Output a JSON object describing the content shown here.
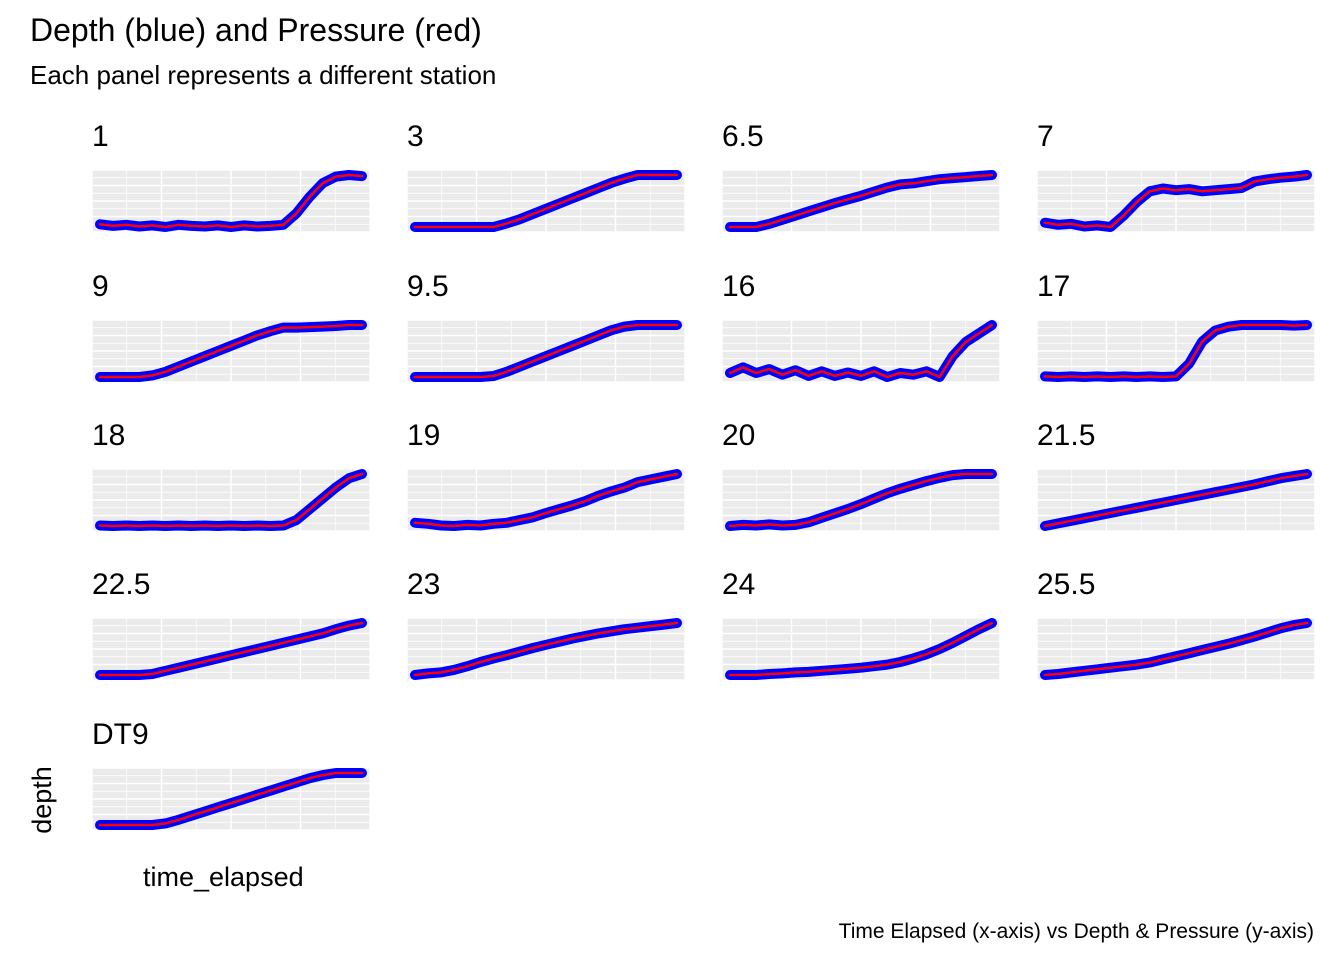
{
  "title": "Depth (blue) and Pressure (red)",
  "subtitle": "Each panel represents a different station",
  "caption": "Time Elapsed (x-axis) vs Depth & Pressure (y-axis)",
  "colors": {
    "depth": "#0000ff",
    "pressure": "#ff0000",
    "panel_background": "#ebebeb",
    "grid": "#ffffff"
  },
  "chart_data": {
    "type": "line",
    "layout": "facet_wrap",
    "facet_columns": 4,
    "xlabel": "time_elapsed",
    "ylabel": "depth",
    "x_ticks_shown": false,
    "y_ticks_shown": false,
    "grid": true,
    "legend": "none",
    "facet_scales": "free",
    "x": [
      0,
      0.05,
      0.1,
      0.15,
      0.2,
      0.25,
      0.3,
      0.35,
      0.4,
      0.45,
      0.5,
      0.55,
      0.6,
      0.65,
      0.7,
      0.75,
      0.8,
      0.85,
      0.9,
      0.95,
      1
    ],
    "panels": [
      {
        "station": "1",
        "values": [
          0.1,
          0.07,
          0.09,
          0.06,
          0.08,
          0.05,
          0.09,
          0.07,
          0.06,
          0.08,
          0.05,
          0.08,
          0.06,
          0.07,
          0.09,
          0.3,
          0.6,
          0.85,
          0.97,
          1,
          0.98
        ]
      },
      {
        "station": "3",
        "values": [
          0,
          0,
          0,
          0,
          0,
          0,
          0,
          0.07,
          0.15,
          0.25,
          0.35,
          0.45,
          0.55,
          0.65,
          0.75,
          0.85,
          0.93,
          1,
          1,
          1,
          1
        ]
      },
      {
        "station": "6.5",
        "values": [
          0,
          0,
          0,
          0.06,
          0.14,
          0.22,
          0.3,
          0.38,
          0.46,
          0.53,
          0.6,
          0.68,
          0.76,
          0.82,
          0.84,
          0.88,
          0.92,
          0.94,
          0.96,
          0.98,
          1
        ]
      },
      {
        "station": "7",
        "values": [
          0.12,
          0.08,
          0.1,
          0.05,
          0.07,
          0.04,
          0.25,
          0.5,
          0.7,
          0.75,
          0.72,
          0.74,
          0.7,
          0.72,
          0.74,
          0.76,
          0.88,
          0.92,
          0.95,
          0.97,
          1
        ]
      },
      {
        "station": "9",
        "values": [
          0,
          0,
          0,
          0,
          0.03,
          0.1,
          0.2,
          0.3,
          0.4,
          0.5,
          0.6,
          0.7,
          0.8,
          0.88,
          0.95,
          0.95,
          0.96,
          0.97,
          0.98,
          1,
          1
        ]
      },
      {
        "station": "9.5",
        "values": [
          0,
          0,
          0,
          0,
          0,
          0,
          0.02,
          0.1,
          0.2,
          0.3,
          0.4,
          0.5,
          0.6,
          0.7,
          0.8,
          0.9,
          0.97,
          1,
          1,
          1,
          1
        ]
      },
      {
        "station": "16",
        "values": [
          0.15,
          0.25,
          0.15,
          0.22,
          0.12,
          0.2,
          0.1,
          0.18,
          0.1,
          0.16,
          0.1,
          0.18,
          0.08,
          0.15,
          0.12,
          0.18,
          0.08,
          0.45,
          0.7,
          0.85,
          1
        ]
      },
      {
        "station": "17",
        "values": [
          0.07,
          0.06,
          0.07,
          0.06,
          0.07,
          0.06,
          0.07,
          0.06,
          0.07,
          0.06,
          0.07,
          0.3,
          0.7,
          0.9,
          0.97,
          1,
          1,
          1,
          1,
          0.99,
          1
        ]
      },
      {
        "station": "18",
        "values": [
          0.05,
          0.04,
          0.05,
          0.04,
          0.05,
          0.04,
          0.05,
          0.04,
          0.05,
          0.04,
          0.05,
          0.04,
          0.05,
          0.04,
          0.05,
          0.15,
          0.35,
          0.55,
          0.75,
          0.92,
          1
        ]
      },
      {
        "station": "19",
        "values": [
          0.1,
          0.08,
          0.05,
          0.04,
          0.06,
          0.05,
          0.08,
          0.1,
          0.15,
          0.2,
          0.28,
          0.35,
          0.42,
          0.5,
          0.6,
          0.68,
          0.75,
          0.85,
          0.9,
          0.95,
          1
        ]
      },
      {
        "station": "20",
        "values": [
          0.05,
          0.07,
          0.06,
          0.08,
          0.06,
          0.07,
          0.12,
          0.2,
          0.28,
          0.36,
          0.45,
          0.55,
          0.65,
          0.73,
          0.8,
          0.87,
          0.93,
          0.98,
          1,
          1,
          1
        ]
      },
      {
        "station": "21.5",
        "values": [
          0,
          0.05,
          0.1,
          0.15,
          0.2,
          0.25,
          0.3,
          0.35,
          0.4,
          0.45,
          0.5,
          0.55,
          0.6,
          0.65,
          0.7,
          0.75,
          0.8,
          0.86,
          0.92,
          0.96,
          1
        ]
      },
      {
        "station": "22.5",
        "values": [
          0,
          0,
          0,
          0,
          0.02,
          0.08,
          0.14,
          0.2,
          0.26,
          0.32,
          0.38,
          0.44,
          0.5,
          0.56,
          0.62,
          0.68,
          0.74,
          0.8,
          0.88,
          0.95,
          1
        ]
      },
      {
        "station": "23",
        "values": [
          0,
          0.03,
          0.05,
          0.1,
          0.17,
          0.25,
          0.32,
          0.38,
          0.45,
          0.52,
          0.58,
          0.64,
          0.7,
          0.75,
          0.8,
          0.84,
          0.88,
          0.91,
          0.94,
          0.97,
          1
        ]
      },
      {
        "station": "24",
        "values": [
          0,
          0,
          0,
          0.02,
          0.03,
          0.05,
          0.06,
          0.08,
          0.1,
          0.12,
          0.14,
          0.17,
          0.2,
          0.25,
          0.32,
          0.4,
          0.5,
          0.62,
          0.75,
          0.88,
          1
        ]
      },
      {
        "station": "25.5",
        "values": [
          0,
          0.02,
          0.05,
          0.08,
          0.11,
          0.14,
          0.17,
          0.2,
          0.24,
          0.3,
          0.36,
          0.42,
          0.48,
          0.54,
          0.6,
          0.67,
          0.74,
          0.82,
          0.9,
          0.96,
          1
        ]
      },
      {
        "station": "DT9",
        "values": [
          0,
          0,
          0,
          0,
          0,
          0.03,
          0.1,
          0.18,
          0.26,
          0.34,
          0.42,
          0.5,
          0.58,
          0.66,
          0.74,
          0.82,
          0.9,
          0.96,
          1,
          1,
          1
        ]
      }
    ]
  }
}
